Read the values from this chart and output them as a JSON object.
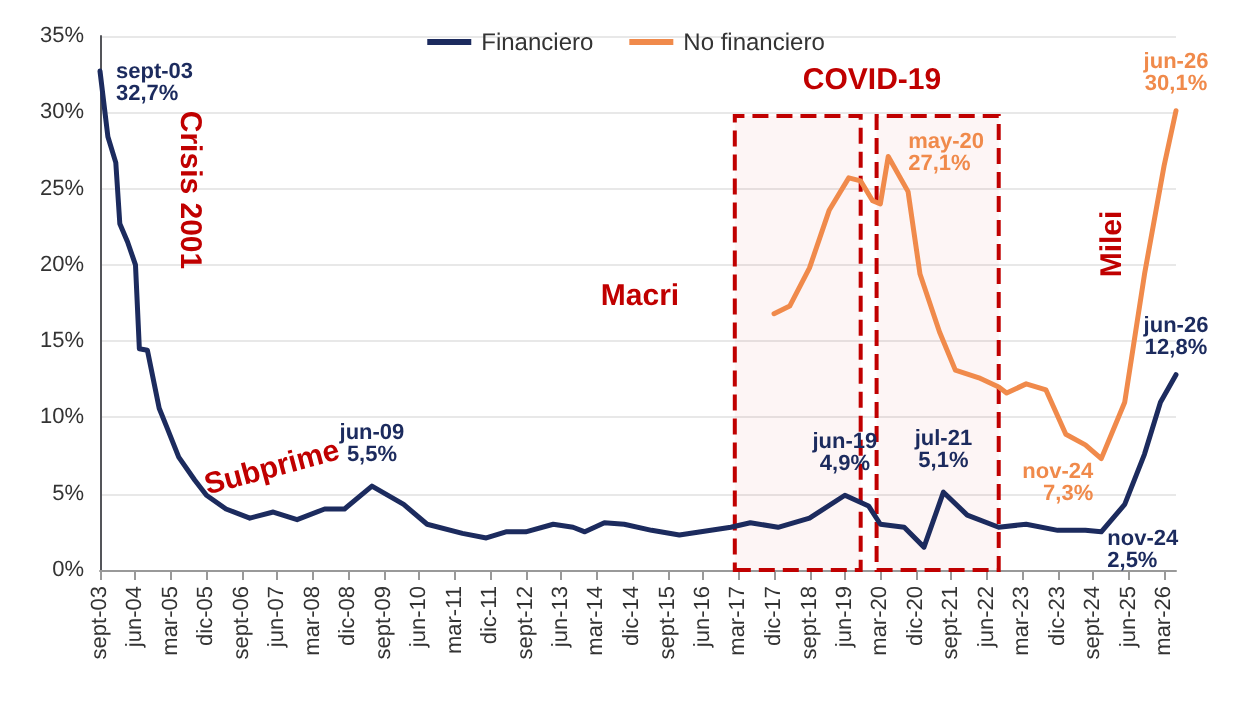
{
  "chart_data": {
    "type": "line",
    "x": [
      "2003-09",
      "2003-11",
      "2004-01",
      "2004-02",
      "2004-04",
      "2004-06",
      "2004-07",
      "2004-09",
      "2004-12",
      "2005-02",
      "2005-05",
      "2005-09",
      "2005-12",
      "2006-05",
      "2006-11",
      "2007-05",
      "2007-11",
      "2008-06",
      "2008-11",
      "2009-06",
      "2010-02",
      "2010-08",
      "2011-05",
      "2011-11",
      "2012-04",
      "2012-09",
      "2013-04",
      "2013-09",
      "2013-12",
      "2014-05",
      "2014-10",
      "2015-05",
      "2015-12",
      "2017-01",
      "2017-06",
      "2018-01",
      "2018-09",
      "2019-06",
      "2019-12",
      "2020-03",
      "2020-09",
      "2021-02",
      "2021-07",
      "2022-01",
      "2022-09",
      "2023-04",
      "2023-12",
      "2024-07",
      "2024-11",
      "2025-05",
      "2025-10",
      "2026-02",
      "2026-06"
    ],
    "series": [
      {
        "name": "Financiero",
        "color": "#1c2b5e",
        "values": [
          32.7,
          28.4,
          26.7,
          22.7,
          21.5,
          20.0,
          14.5,
          14.4,
          10.6,
          9.3,
          7.4,
          5.9,
          4.9,
          4.0,
          3.4,
          3.8,
          3.3,
          4.0,
          4.0,
          5.5,
          4.3,
          3.0,
          2.4,
          2.1,
          2.5,
          2.5,
          3.0,
          2.8,
          2.5,
          3.1,
          3.0,
          2.6,
          2.3,
          2.8,
          3.1,
          2.8,
          3.4,
          4.9,
          4.2,
          3.0,
          2.8,
          1.5,
          5.1,
          3.6,
          2.8,
          3.0,
          2.6,
          2.6,
          2.5,
          4.3,
          7.6,
          11.0,
          12.8
        ],
        "value_labels": [
          "sept-03\n32,7%",
          null,
          null,
          null,
          null,
          null,
          null,
          null,
          null,
          null,
          null,
          null,
          null,
          null,
          null,
          null,
          null,
          null,
          null,
          "jun-09\n5,5%",
          null,
          null,
          null,
          null,
          null,
          null,
          null,
          null,
          null,
          null,
          null,
          null,
          null,
          null,
          null,
          null,
          null,
          "jun-19\n4,9%",
          null,
          null,
          null,
          null,
          "jul-21\n5,1%",
          null,
          null,
          null,
          null,
          null,
          "nov-24\n2,5%",
          null,
          null,
          null,
          "jun-26\n12,8%"
        ]
      },
      {
        "name": "No financiero",
        "color": "#f08a4b",
        "x": [
          "2017-12",
          "2018-04",
          "2018-09",
          "2019-02",
          "2019-07",
          "2019-10",
          "2020-01",
          "2020-03",
          "2020-05",
          "2020-10",
          "2021-01",
          "2021-06",
          "2021-10",
          "2022-04",
          "2022-09",
          "2022-11",
          "2023-04",
          "2023-09",
          "2024-02",
          "2024-07",
          "2024-11",
          "2025-05",
          "2025-10",
          "2026-03",
          "2026-06"
        ],
        "values": [
          16.8,
          17.3,
          19.8,
          23.6,
          25.7,
          25.5,
          24.2,
          24.0,
          27.1,
          24.8,
          19.4,
          15.6,
          13.1,
          12.6,
          12.0,
          11.6,
          12.2,
          11.8,
          8.9,
          8.2,
          7.3,
          11.0,
          19.4,
          26.5,
          30.1
        ],
        "value_labels": [
          null,
          null,
          null,
          null,
          null,
          null,
          null,
          null,
          "may-20\n27,1%",
          null,
          null,
          null,
          null,
          null,
          null,
          null,
          null,
          null,
          null,
          null,
          "nov-24\n7,3%",
          null,
          null,
          null,
          "jun-26\n30,1%"
        ]
      }
    ],
    "xlim": [
      "2003-09",
      "2026-06"
    ],
    "xticks": [
      {
        "value": "2003-09",
        "label": "sept-03"
      },
      {
        "value": "2004-06",
        "label": "jun-04"
      },
      {
        "value": "2005-03",
        "label": "mar-05"
      },
      {
        "value": "2005-12",
        "label": "dic-05"
      },
      {
        "value": "2006-09",
        "label": "sept-06"
      },
      {
        "value": "2007-06",
        "label": "jun-07"
      },
      {
        "value": "2008-03",
        "label": "mar-08"
      },
      {
        "value": "2008-12",
        "label": "dic-08"
      },
      {
        "value": "2009-09",
        "label": "sept-09"
      },
      {
        "value": "2010-06",
        "label": "jun-10"
      },
      {
        "value": "2011-03",
        "label": "mar-11"
      },
      {
        "value": "2011-12",
        "label": "dic-11"
      },
      {
        "value": "2012-09",
        "label": "sept-12"
      },
      {
        "value": "2013-06",
        "label": "jun-13"
      },
      {
        "value": "2014-03",
        "label": "mar-14"
      },
      {
        "value": "2014-12",
        "label": "dic-14"
      },
      {
        "value": "2015-09",
        "label": "sept-15"
      },
      {
        "value": "2016-06",
        "label": "jun-16"
      },
      {
        "value": "2017-03",
        "label": "mar-17"
      },
      {
        "value": "2017-12",
        "label": "dic-17"
      },
      {
        "value": "2018-09",
        "label": "sept-18"
      },
      {
        "value": "2019-06",
        "label": "jun-19"
      },
      {
        "value": "2020-03",
        "label": "mar-20"
      },
      {
        "value": "2020-12",
        "label": "dic-20"
      },
      {
        "value": "2021-09",
        "label": "sept-21"
      },
      {
        "value": "2022-06",
        "label": "jun-22"
      },
      {
        "value": "2023-03",
        "label": "mar-23"
      },
      {
        "value": "2023-12",
        "label": "dic-23"
      },
      {
        "value": "2024-09",
        "label": "sept-24"
      },
      {
        "value": "2025-06",
        "label": "jun-25"
      },
      {
        "value": "2026-03",
        "label": "mar-26"
      }
    ],
    "ylim": [
      0,
      35
    ],
    "yticks": [
      {
        "value": 0,
        "label": "0%"
      },
      {
        "value": 5,
        "label": "5%"
      },
      {
        "value": 10,
        "label": "10%"
      },
      {
        "value": 15,
        "label": "15%"
      },
      {
        "value": 20,
        "label": "20%"
      },
      {
        "value": 25,
        "label": "25%"
      },
      {
        "value": 30,
        "label": "30%"
      },
      {
        "value": 35,
        "label": "35%"
      }
    ],
    "grid": "y",
    "legend": "top",
    "marker": "none",
    "line_style": "solid",
    "bands": [
      {
        "axis": "x",
        "from": "2017-02",
        "to": "2019-10",
        "color": "#c00000"
      },
      {
        "axis": "x",
        "from": "2020-02",
        "to": "2022-09",
        "color": "#c00000"
      }
    ],
    "annotations": [
      "Crisis 2001",
      "Subprime",
      "Macri",
      "COVID-19",
      "Milei"
    ]
  }
}
